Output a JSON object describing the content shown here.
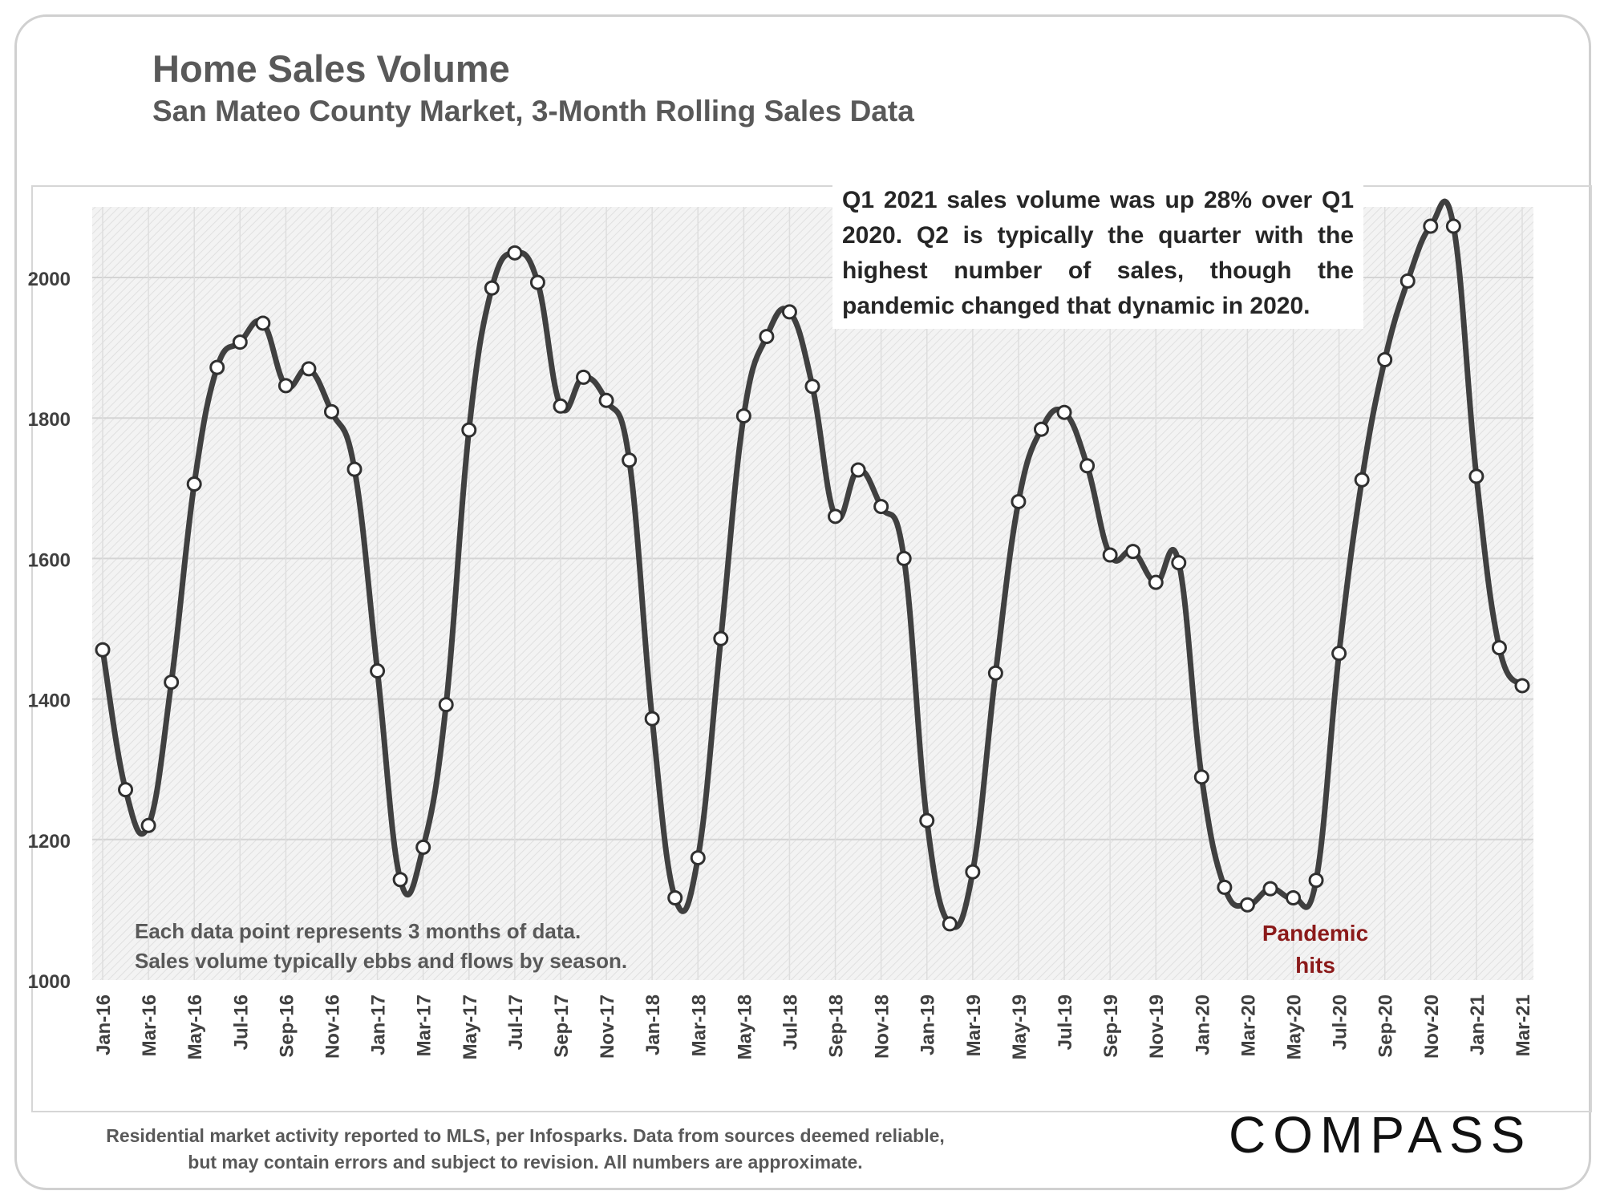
{
  "header": {
    "title": "Home Sales Volume",
    "subtitle": "San Mateo County Market, 3-Month Rolling Sales Data"
  },
  "annotations": {
    "callout": "Q1 2021 sales volume was up 28% over Q1 2020. Q2 is typically the quarter with the highest number of sales, though the pandemic changed that dynamic in 2020.",
    "note_line1": "Each data point represents 3 months of data.",
    "note_line2": "Sales volume typically ebbs and flows by season.",
    "pandemic_line1": "Pandemic",
    "pandemic_line2": "hits"
  },
  "footer": {
    "line1": "Residential market activity reported to MLS, per Infosparks. Data from sources deemed reliable,",
    "line2": "but may contain errors and subject to revision. All numbers are approximate."
  },
  "brand": {
    "logo_text": "COMPASS"
  },
  "colors": {
    "line": "#404040",
    "annotation_red": "#8b1a1a",
    "text_gray": "#595959"
  },
  "chart_data": {
    "type": "line",
    "title": "Home Sales Volume",
    "subtitle": "San Mateo County Market, 3-Month Rolling Sales Data",
    "xlabel": "",
    "ylabel": "",
    "ylim": [
      1000,
      2100
    ],
    "yticks": [
      1000,
      1200,
      1400,
      1600,
      1800,
      2000
    ],
    "grid": true,
    "legend": "none",
    "x": [
      "Jan-16",
      "Feb-16",
      "Mar-16",
      "Apr-16",
      "May-16",
      "Jun-16",
      "Jul-16",
      "Aug-16",
      "Sep-16",
      "Oct-16",
      "Nov-16",
      "Dec-16",
      "Jan-17",
      "Feb-17",
      "Mar-17",
      "Apr-17",
      "May-17",
      "Jun-17",
      "Jul-17",
      "Aug-17",
      "Sep-17",
      "Oct-17",
      "Nov-17",
      "Dec-17",
      "Jan-18",
      "Feb-18",
      "Mar-18",
      "Apr-18",
      "May-18",
      "Jun-18",
      "Jul-18",
      "Aug-18",
      "Sep-18",
      "Oct-18",
      "Nov-18",
      "Dec-18",
      "Jan-19",
      "Feb-19",
      "Mar-19",
      "Apr-19",
      "May-19",
      "Jun-19",
      "Jul-19",
      "Aug-19",
      "Sep-19",
      "Oct-19",
      "Nov-19",
      "Dec-19",
      "Jan-20",
      "Feb-20",
      "Mar-20",
      "Apr-20",
      "May-20",
      "Jun-20",
      "Jul-20",
      "Aug-20",
      "Sep-20",
      "Oct-20",
      "Nov-20",
      "Dec-20",
      "Jan-21",
      "Feb-21",
      "Mar-21"
    ],
    "tick_labels": [
      "Jan-16",
      "Mar-16",
      "May-16",
      "Jul-16",
      "Sep-16",
      "Nov-16",
      "Jan-17",
      "Mar-17",
      "May-17",
      "Jul-17",
      "Sep-17",
      "Nov-17",
      "Jan-18",
      "Mar-18",
      "May-18",
      "Jul-18",
      "Sep-18",
      "Nov-18",
      "Jan-19",
      "Mar-19",
      "May-19",
      "Jul-19",
      "Sep-19",
      "Nov-19",
      "Jan-20",
      "Mar-20",
      "May-20",
      "Jul-20",
      "Sep-20",
      "Nov-20",
      "Jan-21",
      "Mar-21"
    ],
    "series": [
      {
        "values": [
          1470,
          1271,
          1220,
          1424,
          1706,
          1872,
          1908,
          1935,
          1846,
          1870,
          1809,
          1727,
          1440,
          1143,
          1189,
          1392,
          1783,
          1985,
          2035,
          1993,
          1817,
          1858,
          1825,
          1740,
          1372,
          1117,
          1174,
          1486,
          1803,
          1916,
          1951,
          1845,
          1660,
          1726,
          1674,
          1600,
          1227,
          1080,
          1154,
          1437,
          1681,
          1784,
          1808,
          1732,
          1605,
          1610,
          1566,
          1594,
          1289,
          1132,
          1107,
          1130,
          1117,
          1142,
          1465,
          1712,
          1883,
          1995,
          2073,
          2073,
          1717,
          1473,
          1419
        ]
      }
    ]
  }
}
